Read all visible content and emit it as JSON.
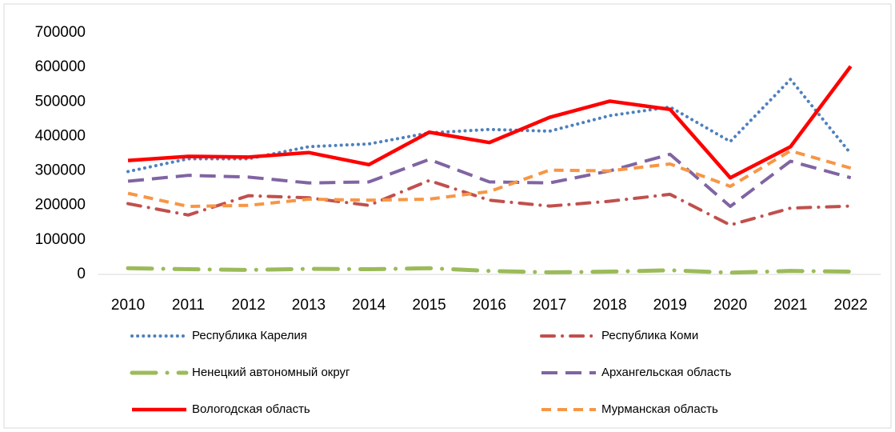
{
  "chart_data": {
    "type": "line",
    "categories": [
      "2010",
      "2011",
      "2012",
      "2013",
      "2014",
      "2015",
      "2016",
      "2017",
      "2018",
      "2019",
      "2020",
      "2021",
      "2022"
    ],
    "series": [
      {
        "name": "Республика Карелия",
        "color": "#4f81bd",
        "values": [
          298000,
          335000,
          335000,
          370000,
          378000,
          410000,
          420000,
          415000,
          460000,
          485000,
          385000,
          565000,
          350000
        ]
      },
      {
        "name": "Республика Коми",
        "color": "#c0504d",
        "values": [
          205000,
          172000,
          228000,
          222000,
          200000,
          272000,
          215000,
          198000,
          212000,
          232000,
          143000,
          192000,
          198000
        ]
      },
      {
        "name": "Ненецкий автономный округ",
        "color": "#9bbb59",
        "values": [
          18000,
          15000,
          13000,
          16000,
          15000,
          18000,
          10000,
          6000,
          8000,
          12000,
          5000,
          10000,
          8000
        ]
      },
      {
        "name": "Архангельская область",
        "color": "#8064a2",
        "values": [
          270000,
          287000,
          282000,
          265000,
          268000,
          333000,
          268000,
          265000,
          300000,
          348000,
          197000,
          328000,
          280000
        ]
      },
      {
        "name": "Вологодская область",
        "color": "#ff0000",
        "values": [
          330000,
          342000,
          340000,
          353000,
          318000,
          412000,
          382000,
          455000,
          502000,
          478000,
          280000,
          370000,
          603000
        ]
      },
      {
        "name": "Мурманская область",
        "color": "#f79646",
        "values": [
          235000,
          197000,
          200000,
          218000,
          215000,
          218000,
          240000,
          302000,
          300000,
          320000,
          255000,
          358000,
          308000
        ]
      }
    ],
    "ylim": [
      0,
      700000
    ],
    "yticks": [
      0,
      100000,
      200000,
      300000,
      400000,
      500000,
      600000,
      700000
    ],
    "grid": false,
    "legend": "bottom"
  }
}
